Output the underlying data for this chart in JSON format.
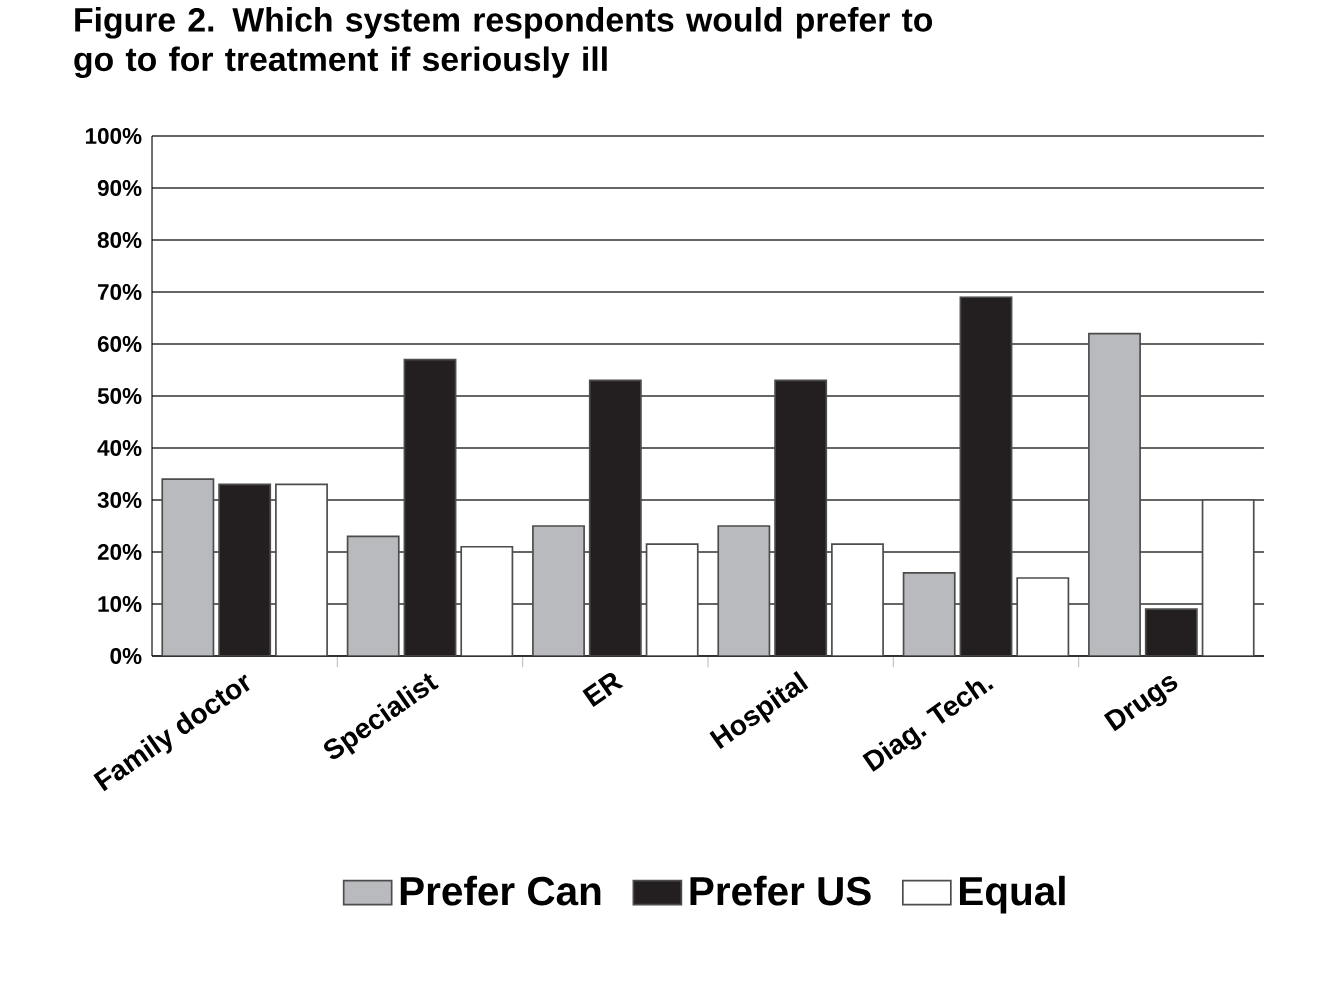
{
  "chart_data": {
    "type": "bar",
    "title": "Figure 2.  Which system respondents would prefer to go to for treatment if seriously ill",
    "categories": [
      "Family doctor",
      "Specialist",
      "ER",
      "Hospital",
      "Diag. Tech.",
      "Drugs"
    ],
    "series": [
      {
        "name": "Prefer Can",
        "color": "#b9babd",
        "values": [
          34,
          23,
          25,
          25,
          16,
          62
        ]
      },
      {
        "name": "Prefer US",
        "color": "#231f20",
        "values": [
          33,
          57,
          53,
          53,
          69,
          9
        ]
      },
      {
        "name": "Equal",
        "color": "#ffffff",
        "values": [
          33,
          21,
          21.5,
          21.5,
          15,
          30
        ]
      }
    ],
    "ylim": [
      0,
      100
    ],
    "yticks": [
      {
        "value": 0,
        "label": "0%"
      },
      {
        "value": 10,
        "label": "10%"
      },
      {
        "value": 20,
        "label": "20%"
      },
      {
        "value": 30,
        "label": "30%"
      },
      {
        "value": 40,
        "label": "40%"
      },
      {
        "value": 50,
        "label": "50%"
      },
      {
        "value": 60,
        "label": "60%"
      },
      {
        "value": 70,
        "label": "70%"
      },
      {
        "value": 80,
        "label": "80%"
      },
      {
        "value": 90,
        "label": "90%"
      },
      {
        "value": 100,
        "label": "100%"
      }
    ],
    "grid": "y",
    "legend": "bottom"
  }
}
